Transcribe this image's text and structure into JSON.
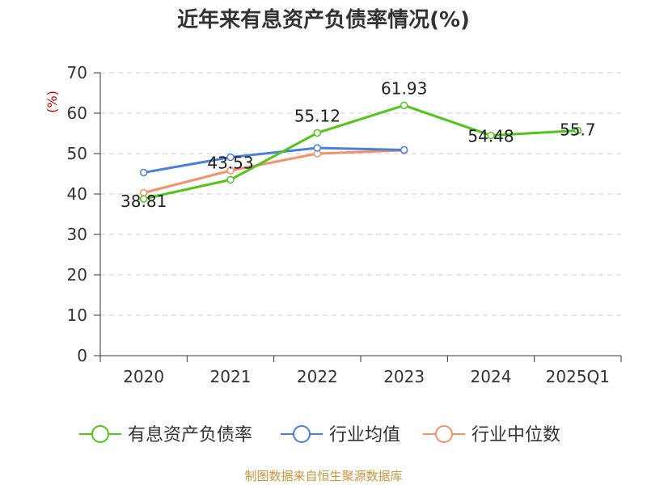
{
  "chart_data": {
    "type": "line",
    "title": "近年来有息资产负债率情况(%)",
    "ylabel": "(%)",
    "categories": [
      "2020",
      "2021",
      "2022",
      "2023",
      "2024",
      "2025Q1"
    ],
    "yticks": [
      "0",
      "10",
      "20",
      "30",
      "40",
      "50",
      "60",
      "70"
    ],
    "ylim": [
      0,
      70
    ],
    "grid": true,
    "legend_position": "bottom",
    "series": [
      {
        "name": "有息资产负债率",
        "color": "#52c41a",
        "values": [
          38.81,
          43.53,
          55.12,
          61.93,
          54.48,
          55.7
        ],
        "labels": [
          "38.81",
          "43.53",
          "55.12",
          "61.93",
          "54.48",
          "55.7"
        ]
      },
      {
        "name": "行业均值",
        "color": "#4a7fdb",
        "values": [
          45.3,
          49.1,
          51.4,
          50.9,
          null,
          null
        ]
      },
      {
        "name": "行业中位数",
        "color": "#f4916a",
        "values": [
          40.3,
          45.8,
          50.0,
          50.8,
          null,
          null
        ]
      }
    ],
    "source": "制图数据来自恒生聚源数据库",
    "unit_color": "#cc0000",
    "source_color": "#c8963c"
  }
}
